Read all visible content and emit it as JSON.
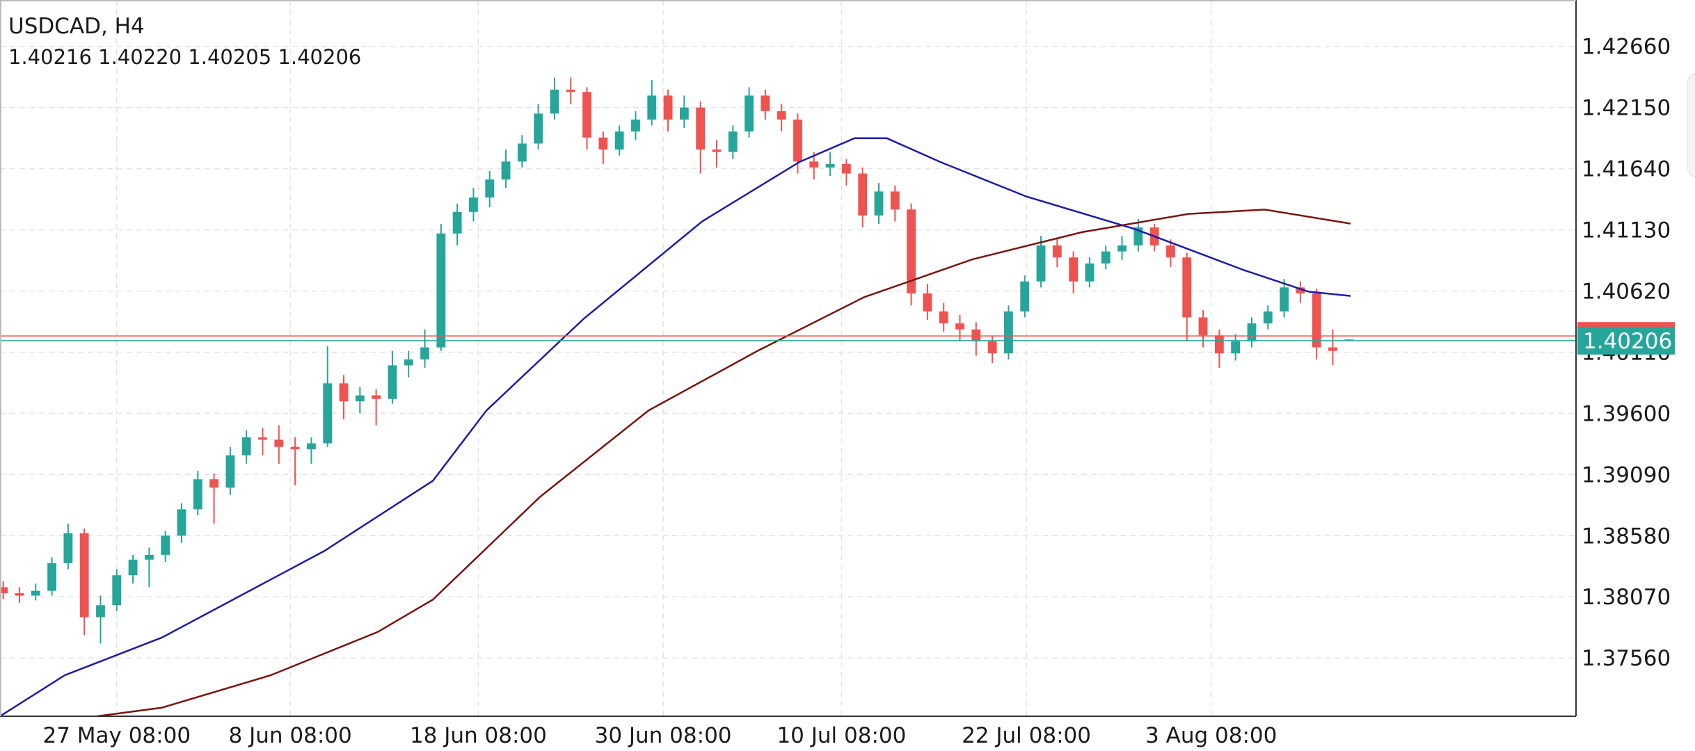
{
  "chart_data": {
    "type": "candlestick",
    "title": "USDCAD, H4",
    "ohlc_text": "1.40216 1.40220 1.40205 1.40206",
    "up_color": "#26a69a",
    "down_color": "#ef5350",
    "grid": true,
    "xlim": [
      -0.2,
      97
    ],
    "ylim": [
      1.37074,
      1.43047
    ],
    "yticks": [
      {
        "value": 1.4266,
        "label": "1.42660"
      },
      {
        "value": 1.4215,
        "label": "1.42150"
      },
      {
        "value": 1.4164,
        "label": "1.41640"
      },
      {
        "value": 1.4113,
        "label": "1.41130"
      },
      {
        "value": 1.4062,
        "label": "1.40620"
      },
      {
        "value": 1.4011,
        "label": "1.40110"
      },
      {
        "value": 1.396,
        "label": "1.39600"
      },
      {
        "value": 1.3909,
        "label": "1.39090"
      },
      {
        "value": 1.3858,
        "label": "1.38580"
      },
      {
        "value": 1.3807,
        "label": "1.38070"
      },
      {
        "value": 1.3756,
        "label": "1.37560"
      }
    ],
    "xticks": [
      {
        "value": 7,
        "label": "27 May 08:00"
      },
      {
        "value": 17.7,
        "label": "8 Jun 08:00"
      },
      {
        "value": 29.3,
        "label": "18 Jun 08:00"
      },
      {
        "value": 40.7,
        "label": "30 Jun 08:00"
      },
      {
        "value": 51.7,
        "label": "10 Jul 08:00"
      },
      {
        "value": 63.1,
        "label": "22 Jul 08:00"
      },
      {
        "value": 74.5,
        "label": "3 Aug 08:00"
      }
    ],
    "current_price": 1.40206,
    "current_color": "#26a69a",
    "ask_price": 1.40245,
    "ask_color": "#ef5350",
    "candles": [
      [
        1.3815,
        1.382,
        1.3805,
        1.381
      ],
      [
        1.381,
        1.3815,
        1.3802,
        1.3808
      ],
      [
        1.3808,
        1.3818,
        1.3804,
        1.3812
      ],
      [
        1.3812,
        1.384,
        1.3808,
        1.3835
      ],
      [
        1.3835,
        1.3868,
        1.383,
        1.386
      ],
      [
        1.386,
        1.3864,
        1.3775,
        1.379
      ],
      [
        1.379,
        1.3808,
        1.3768,
        1.38
      ],
      [
        1.38,
        1.383,
        1.3795,
        1.3825
      ],
      [
        1.3825,
        1.3842,
        1.3818,
        1.3838
      ],
      [
        1.3838,
        1.3848,
        1.3815,
        1.3842
      ],
      [
        1.3842,
        1.3862,
        1.3836,
        1.3858
      ],
      [
        1.3858,
        1.3885,
        1.3852,
        1.388
      ],
      [
        1.388,
        1.3912,
        1.3875,
        1.3905
      ],
      [
        1.3905,
        1.391,
        1.3868,
        1.3898
      ],
      [
        1.3898,
        1.3932,
        1.3892,
        1.3925
      ],
      [
        1.3925,
        1.3946,
        1.3918,
        1.394
      ],
      [
        1.394,
        1.3948,
        1.3925,
        1.3938
      ],
      [
        1.3938,
        1.395,
        1.3918,
        1.3932
      ],
      [
        1.3932,
        1.394,
        1.39,
        1.393
      ],
      [
        1.393,
        1.394,
        1.3918,
        1.3935
      ],
      [
        1.3935,
        1.4016,
        1.3932,
        1.3985
      ],
      [
        1.3985,
        1.3992,
        1.3955,
        1.397
      ],
      [
        1.397,
        1.3982,
        1.396,
        1.3975
      ],
      [
        1.3975,
        1.398,
        1.395,
        1.3972
      ],
      [
        1.3972,
        1.4012,
        1.3968,
        1.4
      ],
      [
        1.4,
        1.4012,
        1.399,
        1.4005
      ],
      [
        1.4005,
        1.403,
        1.3998,
        1.4015
      ],
      [
        1.4015,
        1.4118,
        1.4012,
        1.411
      ],
      [
        1.411,
        1.4135,
        1.41,
        1.4128
      ],
      [
        1.4128,
        1.4148,
        1.412,
        1.414
      ],
      [
        1.414,
        1.4162,
        1.4132,
        1.4155
      ],
      [
        1.4155,
        1.418,
        1.4148,
        1.417
      ],
      [
        1.417,
        1.4192,
        1.4165,
        1.4185
      ],
      [
        1.4185,
        1.4218,
        1.418,
        1.421
      ],
      [
        1.421,
        1.424,
        1.4205,
        1.423
      ],
      [
        1.423,
        1.424,
        1.4218,
        1.4228
      ],
      [
        1.4228,
        1.4232,
        1.418,
        1.419
      ],
      [
        1.419,
        1.4195,
        1.4168,
        1.418
      ],
      [
        1.418,
        1.42,
        1.4175,
        1.4195
      ],
      [
        1.4195,
        1.4212,
        1.4188,
        1.4205
      ],
      [
        1.4205,
        1.4238,
        1.42,
        1.4225
      ],
      [
        1.4225,
        1.423,
        1.4195,
        1.4205
      ],
      [
        1.4205,
        1.4225,
        1.4198,
        1.4215
      ],
      [
        1.4215,
        1.422,
        1.416,
        1.418
      ],
      [
        1.418,
        1.4188,
        1.4165,
        1.4178
      ],
      [
        1.4178,
        1.42,
        1.4172,
        1.4195
      ],
      [
        1.4195,
        1.4232,
        1.419,
        1.4225
      ],
      [
        1.4225,
        1.423,
        1.4205,
        1.4212
      ],
      [
        1.4212,
        1.4218,
        1.4195,
        1.4205
      ],
      [
        1.4205,
        1.421,
        1.416,
        1.417
      ],
      [
        1.417,
        1.4178,
        1.4155,
        1.4165
      ],
      [
        1.4165,
        1.4178,
        1.4158,
        1.4168
      ],
      [
        1.4168,
        1.4172,
        1.415,
        1.416
      ],
      [
        1.416,
        1.4165,
        1.4115,
        1.4125
      ],
      [
        1.4125,
        1.4152,
        1.4118,
        1.4145
      ],
      [
        1.4145,
        1.415,
        1.412,
        1.413
      ],
      [
        1.413,
        1.4135,
        1.405,
        1.406
      ],
      [
        1.406,
        1.4068,
        1.4038,
        1.4045
      ],
      [
        1.4045,
        1.4052,
        1.4028,
        1.4035
      ],
      [
        1.4035,
        1.4042,
        1.402,
        1.403
      ],
      [
        1.403,
        1.4036,
        1.4008,
        1.402
      ],
      [
        1.402,
        1.4025,
        1.4002,
        1.401
      ],
      [
        1.401,
        1.405,
        1.4005,
        1.4045
      ],
      [
        1.4045,
        1.4075,
        1.404,
        1.407
      ],
      [
        1.407,
        1.4108,
        1.4065,
        1.41
      ],
      [
        1.41,
        1.4106,
        1.4082,
        1.409
      ],
      [
        1.409,
        1.4095,
        1.406,
        1.407
      ],
      [
        1.407,
        1.409,
        1.4065,
        1.4085
      ],
      [
        1.4085,
        1.41,
        1.408,
        1.4095
      ],
      [
        1.4095,
        1.4108,
        1.4088,
        1.41
      ],
      [
        1.41,
        1.4122,
        1.4095,
        1.4115
      ],
      [
        1.4115,
        1.4118,
        1.4095,
        1.41
      ],
      [
        1.41,
        1.4105,
        1.4082,
        1.409
      ],
      [
        1.409,
        1.4094,
        1.402,
        1.404
      ],
      [
        1.404,
        1.4046,
        1.4015,
        1.4025
      ],
      [
        1.4025,
        1.403,
        1.3998,
        1.401
      ],
      [
        1.401,
        1.4026,
        1.4004,
        1.402
      ],
      [
        1.402,
        1.404,
        1.4015,
        1.4035
      ],
      [
        1.4035,
        1.405,
        1.403,
        1.4045
      ],
      [
        1.4045,
        1.4072,
        1.404,
        1.4065
      ],
      [
        1.4065,
        1.407,
        1.4052,
        1.406
      ],
      [
        1.406,
        1.4064,
        1.4005,
        1.4015
      ],
      [
        1.4015,
        1.403,
        1.4,
        1.4012
      ],
      [
        1.40216,
        1.4022,
        1.40205,
        1.40206
      ]
    ],
    "overlays": [
      {
        "color": "#1c1ca8",
        "x": [
          -0.2,
          3.8,
          9.8,
          19.8,
          26.5,
          29.8,
          35.8,
          43.1,
          49.1,
          52.5,
          54.5,
          57.8,
          63.1,
          69.8,
          76.5,
          80.5,
          83.1
        ],
        "values": [
          1.37074,
          1.37416,
          1.37731,
          1.38452,
          1.39038,
          1.39624,
          1.40389,
          1.412,
          1.41696,
          1.41894,
          1.41894,
          1.41696,
          1.41408,
          1.41137,
          1.40795,
          1.40615,
          1.40579
        ]
      },
      {
        "color": "#7a1410",
        "x": [
          5.8,
          9.8,
          16.5,
          23.1,
          26.5,
          33.1,
          39.8,
          46.5,
          53.1,
          59.8,
          66.5,
          73.1,
          77.8,
          83.1
        ],
        "values": [
          1.37074,
          1.37146,
          1.37416,
          1.37777,
          1.38047,
          1.38903,
          1.39624,
          1.40119,
          1.40569,
          1.40885,
          1.4111,
          1.41263,
          1.41299,
          1.41182
        ]
      }
    ]
  }
}
